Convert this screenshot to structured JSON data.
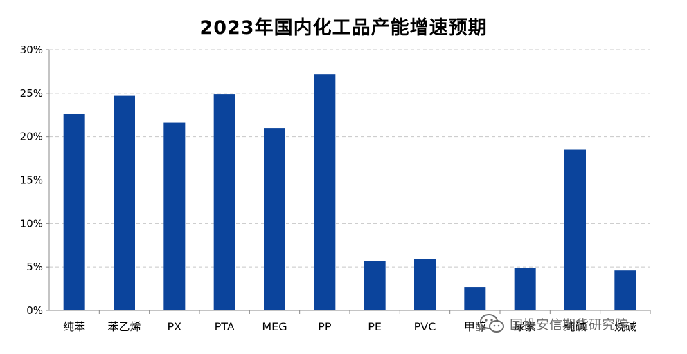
{
  "chart_data": {
    "type": "bar",
    "title": "2023年国内化工品产能增速预期",
    "categories": [
      "纯苯",
      "苯乙烯",
      "PX",
      "PTA",
      "MEG",
      "PP",
      "PE",
      "PVC",
      "甲醇",
      "尿素",
      "纯碱",
      "烧碱"
    ],
    "values": [
      22.6,
      24.7,
      21.6,
      24.9,
      21.0,
      27.2,
      5.7,
      5.9,
      2.7,
      4.9,
      18.5,
      4.6
    ],
    "ylim": [
      0,
      30
    ],
    "yticks": [
      "0%",
      "5%",
      "10%",
      "15%",
      "20%",
      "25%",
      "30%"
    ],
    "grid": true,
    "bar_color": "#0B449C",
    "xlabel": "",
    "ylabel": ""
  },
  "watermark": {
    "text": "国投安信期货研究院",
    "icon": "wechat-icon"
  }
}
